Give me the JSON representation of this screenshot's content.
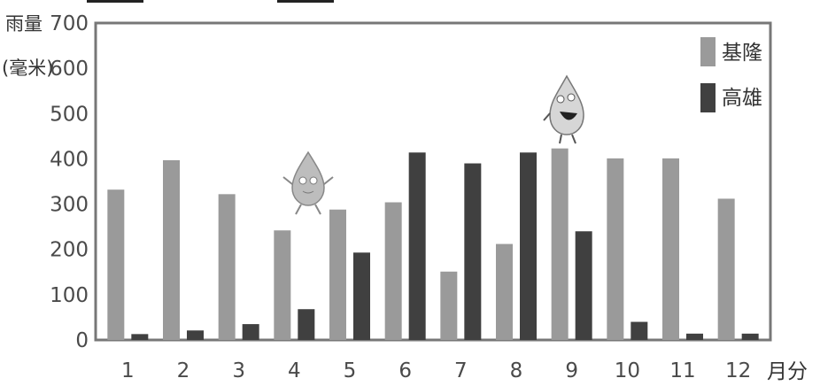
{
  "chart_data": {
    "type": "bar",
    "ylabel": [
      "雨量",
      "(毫米)"
    ],
    "xlabel": "月分",
    "ylim": [
      0,
      700
    ],
    "yticks": [
      0,
      100,
      200,
      300,
      400,
      500,
      600,
      700
    ],
    "categories": [
      "1",
      "2",
      "3",
      "4",
      "5",
      "6",
      "7",
      "8",
      "9",
      "10",
      "11",
      "12"
    ],
    "series": [
      {
        "name": "基隆",
        "color": "#9a9a9a",
        "values": [
          332,
          397,
          322,
          242,
          288,
          304,
          151,
          212,
          423,
          401,
          401,
          312
        ]
      },
      {
        "name": "高雄",
        "color": "#404040",
        "values": [
          13,
          21,
          35,
          68,
          193,
          414,
          390,
          414,
          240,
          40,
          14,
          14
        ]
      }
    ],
    "legend_position": "top-right"
  }
}
